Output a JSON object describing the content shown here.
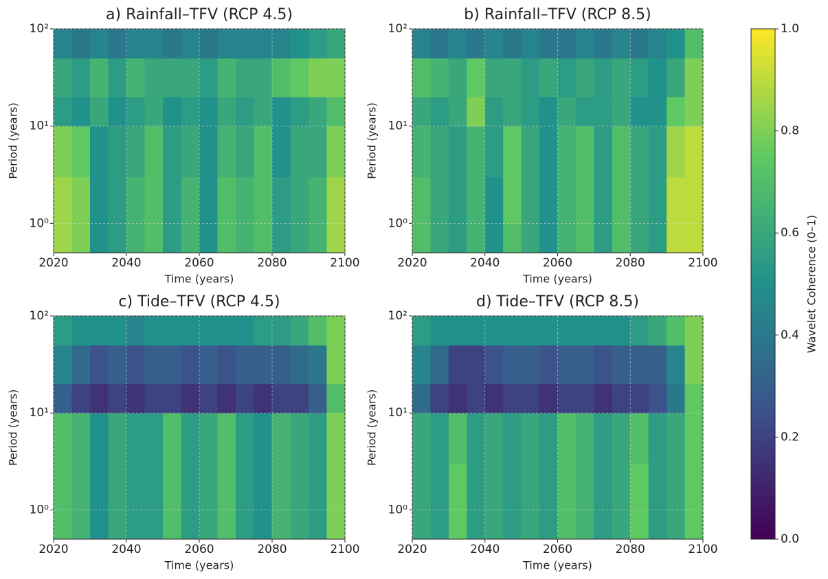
{
  "chart_data": [
    {
      "type": "heatmap",
      "title": "a) Rainfall–TFV (RCP 4.5)",
      "x_label": "Time (years)",
      "y_label": "Period (years)",
      "xlim": [
        2020,
        2100
      ],
      "xticks": [
        2020,
        2040,
        2060,
        2080,
        2100
      ],
      "ylim": [
        0.5,
        100
      ],
      "yticks": [
        {
          "value": 1,
          "label": "10⁰"
        },
        {
          "value": 10,
          "label": "10¹"
        },
        {
          "value": 100,
          "label": "10²"
        }
      ],
      "log_y": true,
      "grid": true,
      "x_edges": [
        2020,
        2025,
        2030,
        2035,
        2040,
        2045,
        2050,
        2055,
        2060,
        2065,
        2070,
        2075,
        2080,
        2085,
        2090,
        2095,
        2100
      ],
      "y_edges": [
        0.5,
        1,
        3,
        10,
        20,
        50,
        100
      ],
      "z": [
        [
          0.85,
          0.8,
          0.5,
          0.55,
          0.65,
          0.7,
          0.55,
          0.65,
          0.5,
          0.7,
          0.65,
          0.7,
          0.55,
          0.6,
          0.65,
          0.85
        ],
        [
          0.85,
          0.8,
          0.5,
          0.55,
          0.65,
          0.7,
          0.55,
          0.65,
          0.5,
          0.7,
          0.65,
          0.7,
          0.55,
          0.6,
          0.65,
          0.85
        ],
        [
          0.8,
          0.75,
          0.5,
          0.55,
          0.6,
          0.7,
          0.55,
          0.6,
          0.5,
          0.65,
          0.6,
          0.7,
          0.5,
          0.6,
          0.6,
          0.8
        ],
        [
          0.55,
          0.5,
          0.6,
          0.5,
          0.55,
          0.6,
          0.5,
          0.55,
          0.5,
          0.6,
          0.55,
          0.6,
          0.5,
          0.55,
          0.6,
          0.7
        ],
        [
          0.6,
          0.55,
          0.65,
          0.55,
          0.65,
          0.6,
          0.6,
          0.6,
          0.55,
          0.65,
          0.6,
          0.6,
          0.7,
          0.75,
          0.8,
          0.8
        ],
        [
          0.45,
          0.4,
          0.45,
          0.4,
          0.45,
          0.45,
          0.4,
          0.45,
          0.4,
          0.45,
          0.45,
          0.45,
          0.45,
          0.5,
          0.55,
          0.6
        ]
      ]
    },
    {
      "type": "heatmap",
      "title": "b) Rainfall–TFV (RCP 8.5)",
      "x_label": "Time (years)",
      "y_label": "Period (years)",
      "xlim": [
        2020,
        2100
      ],
      "xticks": [
        2020,
        2040,
        2060,
        2080,
        2100
      ],
      "ylim": [
        0.5,
        100
      ],
      "yticks": [
        {
          "value": 1,
          "label": "10⁰"
        },
        {
          "value": 10,
          "label": "10¹"
        },
        {
          "value": 100,
          "label": "10²"
        }
      ],
      "log_y": true,
      "grid": true,
      "x_edges": [
        2020,
        2025,
        2030,
        2035,
        2040,
        2045,
        2050,
        2055,
        2060,
        2065,
        2070,
        2075,
        2080,
        2085,
        2090,
        2095,
        2100
      ],
      "y_edges": [
        0.5,
        1,
        3,
        10,
        20,
        50,
        100
      ],
      "z": [
        [
          0.7,
          0.6,
          0.55,
          0.65,
          0.5,
          0.7,
          0.6,
          0.5,
          0.65,
          0.7,
          0.55,
          0.7,
          0.6,
          0.55,
          0.9,
          0.9
        ],
        [
          0.7,
          0.6,
          0.55,
          0.65,
          0.5,
          0.75,
          0.6,
          0.5,
          0.65,
          0.7,
          0.55,
          0.7,
          0.6,
          0.55,
          0.9,
          0.9
        ],
        [
          0.65,
          0.6,
          0.55,
          0.65,
          0.55,
          0.75,
          0.6,
          0.5,
          0.65,
          0.7,
          0.55,
          0.7,
          0.6,
          0.55,
          0.85,
          0.9
        ],
        [
          0.6,
          0.55,
          0.6,
          0.8,
          0.55,
          0.6,
          0.55,
          0.5,
          0.6,
          0.55,
          0.55,
          0.6,
          0.5,
          0.5,
          0.75,
          0.8
        ],
        [
          0.7,
          0.65,
          0.6,
          0.75,
          0.6,
          0.6,
          0.55,
          0.6,
          0.55,
          0.6,
          0.55,
          0.6,
          0.55,
          0.5,
          0.6,
          0.8
        ],
        [
          0.45,
          0.4,
          0.45,
          0.4,
          0.45,
          0.4,
          0.45,
          0.4,
          0.4,
          0.45,
          0.4,
          0.45,
          0.4,
          0.45,
          0.5,
          0.7
        ]
      ]
    },
    {
      "type": "heatmap",
      "title": "c) Tide–TFV (RCP 4.5)",
      "x_label": "Time (years)",
      "y_label": "Period (years)",
      "xlim": [
        2020,
        2100
      ],
      "xticks": [
        2020,
        2040,
        2060,
        2080,
        2100
      ],
      "ylim": [
        0.5,
        100
      ],
      "yticks": [
        {
          "value": 1,
          "label": "10⁰"
        },
        {
          "value": 10,
          "label": "10¹"
        },
        {
          "value": 100,
          "label": "10²"
        }
      ],
      "log_y": true,
      "grid": true,
      "x_edges": [
        2020,
        2025,
        2030,
        2035,
        2040,
        2045,
        2050,
        2055,
        2060,
        2065,
        2070,
        2075,
        2080,
        2085,
        2090,
        2095,
        2100
      ],
      "y_edges": [
        0.5,
        1,
        3,
        10,
        20,
        50,
        100
      ],
      "z": [
        [
          0.7,
          0.65,
          0.5,
          0.6,
          0.55,
          0.55,
          0.7,
          0.55,
          0.6,
          0.7,
          0.55,
          0.5,
          0.65,
          0.6,
          0.55,
          0.8
        ],
        [
          0.7,
          0.65,
          0.5,
          0.6,
          0.55,
          0.55,
          0.7,
          0.55,
          0.6,
          0.7,
          0.55,
          0.5,
          0.65,
          0.6,
          0.55,
          0.8
        ],
        [
          0.7,
          0.65,
          0.5,
          0.6,
          0.55,
          0.55,
          0.7,
          0.55,
          0.6,
          0.7,
          0.55,
          0.5,
          0.65,
          0.6,
          0.55,
          0.8
        ],
        [
          0.3,
          0.2,
          0.15,
          0.2,
          0.15,
          0.2,
          0.2,
          0.15,
          0.2,
          0.15,
          0.2,
          0.15,
          0.2,
          0.2,
          0.3,
          0.7
        ],
        [
          0.45,
          0.35,
          0.25,
          0.3,
          0.25,
          0.3,
          0.3,
          0.25,
          0.3,
          0.25,
          0.3,
          0.3,
          0.3,
          0.35,
          0.4,
          0.8
        ],
        [
          0.55,
          0.5,
          0.5,
          0.5,
          0.45,
          0.5,
          0.5,
          0.5,
          0.5,
          0.5,
          0.5,
          0.55,
          0.55,
          0.6,
          0.7,
          0.8
        ]
      ]
    },
    {
      "type": "heatmap",
      "title": "d) Tide–TFV (RCP 8.5)",
      "x_label": "Time (years)",
      "y_label": "Period (years)",
      "xlim": [
        2020,
        2100
      ],
      "xticks": [
        2020,
        2040,
        2060,
        2080,
        2100
      ],
      "ylim": [
        0.5,
        100
      ],
      "yticks": [
        {
          "value": 1,
          "label": "10⁰"
        },
        {
          "value": 10,
          "label": "10¹"
        },
        {
          "value": 100,
          "label": "10²"
        }
      ],
      "log_y": true,
      "grid": true,
      "x_edges": [
        2020,
        2025,
        2030,
        2035,
        2040,
        2045,
        2050,
        2055,
        2060,
        2065,
        2070,
        2075,
        2080,
        2085,
        2090,
        2095,
        2100
      ],
      "y_edges": [
        0.5,
        1,
        3,
        10,
        20,
        50,
        100
      ],
      "z": [
        [
          0.6,
          0.55,
          0.75,
          0.55,
          0.6,
          0.55,
          0.6,
          0.55,
          0.7,
          0.65,
          0.55,
          0.6,
          0.75,
          0.55,
          0.6,
          0.75
        ],
        [
          0.6,
          0.55,
          0.75,
          0.55,
          0.6,
          0.55,
          0.6,
          0.55,
          0.7,
          0.65,
          0.55,
          0.6,
          0.75,
          0.55,
          0.6,
          0.75
        ],
        [
          0.6,
          0.55,
          0.7,
          0.55,
          0.6,
          0.55,
          0.6,
          0.55,
          0.7,
          0.65,
          0.55,
          0.6,
          0.7,
          0.55,
          0.6,
          0.75
        ],
        [
          0.35,
          0.2,
          0.15,
          0.2,
          0.15,
          0.2,
          0.2,
          0.15,
          0.2,
          0.2,
          0.15,
          0.2,
          0.2,
          0.25,
          0.4,
          0.75
        ],
        [
          0.45,
          0.35,
          0.2,
          0.2,
          0.25,
          0.3,
          0.3,
          0.25,
          0.3,
          0.3,
          0.25,
          0.3,
          0.3,
          0.3,
          0.45,
          0.8
        ],
        [
          0.55,
          0.5,
          0.5,
          0.5,
          0.5,
          0.5,
          0.5,
          0.5,
          0.5,
          0.5,
          0.5,
          0.5,
          0.55,
          0.6,
          0.7,
          0.8
        ]
      ]
    }
  ],
  "colorbar": {
    "label": "Wavelet Coherence (0–1)",
    "clim": [
      0,
      1
    ],
    "ticks": [
      {
        "value": 0,
        "label": "0.0"
      },
      0.2,
      0.4,
      0.6,
      0.8,
      {
        "value": 1,
        "label": "1.0"
      }
    ],
    "colormap": [
      "#440154",
      "#3b528b",
      "#21918c",
      "#5ec962",
      "#fde725"
    ]
  }
}
